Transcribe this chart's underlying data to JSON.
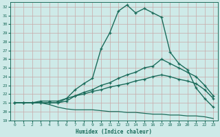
{
  "xlabel": "Humidex (Indice chaleur)",
  "xlim": [
    -0.5,
    23.5
  ],
  "ylim": [
    19,
    32.5
  ],
  "yticks": [
    19,
    20,
    21,
    22,
    23,
    24,
    25,
    26,
    27,
    28,
    29,
    30,
    31,
    32
  ],
  "xticks": [
    0,
    1,
    2,
    3,
    4,
    5,
    6,
    7,
    8,
    9,
    10,
    11,
    12,
    13,
    14,
    15,
    16,
    17,
    18,
    19,
    20,
    21,
    22,
    23
  ],
  "bg_color": "#ceeae8",
  "line_color": "#1a6b5a",
  "grid_color": "#b0d4d2",
  "lines": [
    {
      "x": [
        0,
        1,
        2,
        3,
        4,
        5,
        6,
        7,
        8,
        9,
        10,
        11,
        12,
        13,
        14,
        15,
        16,
        17,
        18,
        19,
        20,
        21,
        22,
        23
      ],
      "y": [
        21.0,
        21.0,
        21.0,
        21.0,
        21.0,
        21.0,
        21.5,
        22.5,
        23.2,
        23.8,
        27.2,
        29.0,
        31.5,
        32.2,
        31.3,
        31.8,
        31.3,
        30.8,
        26.8,
        25.5,
        24.8,
        22.7,
        21.5,
        20.5
      ],
      "marker": "+",
      "lw": 1.0
    },
    {
      "x": [
        0,
        1,
        2,
        3,
        4,
        5,
        6,
        7,
        8,
        9,
        10,
        11,
        12,
        13,
        14,
        15,
        16,
        17,
        18,
        19,
        20,
        21,
        22,
        23
      ],
      "y": [
        21.0,
        21.0,
        21.0,
        21.0,
        21.0,
        21.0,
        21.2,
        21.8,
        22.2,
        22.5,
        23.0,
        23.3,
        23.8,
        24.2,
        24.5,
        25.0,
        25.2,
        26.0,
        25.5,
        25.0,
        24.5,
        24.0,
        23.0,
        21.8
      ],
      "marker": "+",
      "lw": 1.0
    },
    {
      "x": [
        0,
        1,
        2,
        3,
        4,
        5,
        6,
        7,
        8,
        9,
        10,
        11,
        12,
        13,
        14,
        15,
        16,
        17,
        18,
        19,
        20,
        21,
        22,
        23
      ],
      "y": [
        21.0,
        21.0,
        21.0,
        21.2,
        21.2,
        21.2,
        21.5,
        21.8,
        22.0,
        22.3,
        22.5,
        22.8,
        23.0,
        23.2,
        23.5,
        23.7,
        24.0,
        24.2,
        24.0,
        23.7,
        23.5,
        23.2,
        22.5,
        21.5
      ],
      "marker": "+",
      "lw": 1.0
    },
    {
      "x": [
        0,
        1,
        2,
        3,
        4,
        5,
        6,
        7,
        8,
        9,
        10,
        11,
        12,
        13,
        14,
        15,
        16,
        17,
        18,
        19,
        20,
        21,
        22,
        23
      ],
      "y": [
        21.0,
        21.0,
        21.0,
        21.0,
        20.8,
        20.5,
        20.3,
        20.2,
        20.2,
        20.2,
        20.1,
        20.0,
        20.0,
        19.9,
        19.9,
        19.8,
        19.7,
        19.7,
        19.6,
        19.6,
        19.5,
        19.5,
        19.4,
        19.2
      ],
      "marker": null,
      "lw": 0.9
    }
  ]
}
